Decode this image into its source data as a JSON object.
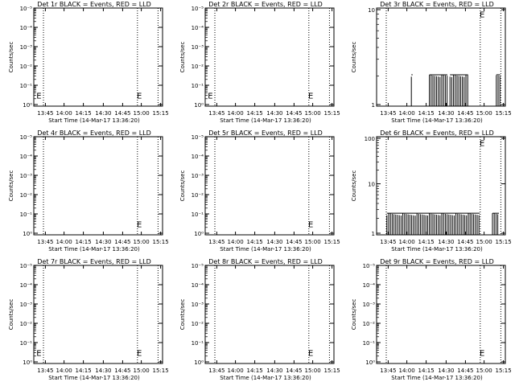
{
  "chart_data": [
    {
      "type": "line",
      "title": "Det 1r BLACK = Events, RED = LLD",
      "xlabel": "Start Time (14-Mar-17 13:36:20)",
      "ylabel": "Counts/sec",
      "xticks": [
        "13:45",
        "14:00",
        "14:15",
        "14:30",
        "14:45",
        "15:00",
        "15:15"
      ],
      "yticks": [
        "10⁰",
        "10⁻¹",
        "10⁻²",
        "10⁻³",
        "10⁻⁴",
        "10⁻⁵"
      ],
      "yscale": "log",
      "series": [],
      "markers": [
        "E",
        "E"
      ]
    },
    {
      "type": "line",
      "title": "Det 2r BLACK = Events, RED = LLD",
      "xlabel": "Start Time (14-Mar-17 13:36:20)",
      "ylabel": "Counts/sec",
      "xticks": [
        "13:45",
        "14:00",
        "14:15",
        "14:30",
        "14:45",
        "15:00",
        "15:15"
      ],
      "yticks": [
        "10⁰",
        "10⁻¹",
        "10⁻²",
        "10⁻³",
        "10⁻⁴",
        "10⁻⁵"
      ],
      "yscale": "log",
      "series": [],
      "markers": [
        "E",
        "E"
      ]
    },
    {
      "type": "line",
      "title": "Det 3r BLACK = Events, RED = LLD",
      "xlabel": "Start Time (14-Mar-17 13:36:20)",
      "ylabel": "Counts/sec",
      "xticks": [
        "13:45",
        "14:00",
        "14:15",
        "14:30",
        "14:45",
        "15:00",
        "15:15"
      ],
      "yticks": [
        "1",
        "10"
      ],
      "yscale": "log",
      "series": [],
      "markers": [
        "E"
      ]
    },
    {
      "type": "line",
      "title": "Det 4r BLACK = Events, RED = LLD",
      "xlabel": "Start Time (14-Mar-17 13:36:20)",
      "ylabel": "Counts/sec",
      "xticks": [
        "13:45",
        "14:00",
        "14:15",
        "14:30",
        "14:45",
        "15:00",
        "15:15"
      ],
      "yticks": [
        "10⁰",
        "10⁻¹",
        "10⁻²",
        "10⁻³",
        "10⁻⁴",
        "10⁻⁵"
      ],
      "yscale": "log",
      "series": [],
      "markers": [
        "E"
      ]
    },
    {
      "type": "line",
      "title": "Det 5r BLACK = Events, RED = LLD",
      "xlabel": "Start Time (14-Mar-17 13:36:20)",
      "ylabel": "Counts/sec",
      "xticks": [
        "13:45",
        "14:00",
        "14:15",
        "14:30",
        "14:45",
        "15:00",
        "15:15"
      ],
      "yticks": [
        "10⁰",
        "10⁻¹",
        "10⁻²",
        "10⁻³",
        "10⁻⁴",
        "10⁻⁵"
      ],
      "yscale": "log",
      "series": [],
      "markers": [
        "E"
      ]
    },
    {
      "type": "line",
      "title": "Det 6r BLACK = Events, RED = LLD",
      "xlabel": "Start Time (14-Mar-17 13:36:20)",
      "ylabel": "Counts/sec",
      "xticks": [
        "13:45",
        "14:00",
        "14:15",
        "14:30",
        "14:45",
        "15:00",
        "15:15"
      ],
      "yticks": [
        "1",
        "10",
        "100"
      ],
      "yscale": "log",
      "series": [],
      "markers": [
        "E"
      ]
    },
    {
      "type": "line",
      "title": "Det 7r BLACK = Events, RED = LLD",
      "xlabel": "Start Time (14-Mar-17 13:36:20)",
      "ylabel": "Counts/sec",
      "xticks": [
        "13:45",
        "14:00",
        "14:15",
        "14:30",
        "14:45",
        "15:00",
        "15:15"
      ],
      "yticks": [
        "10⁰",
        "10⁻¹",
        "10⁻²",
        "10⁻³",
        "10⁻⁴",
        "10⁻⁵"
      ],
      "yscale": "log",
      "series": [],
      "markers": [
        "E",
        "E"
      ]
    },
    {
      "type": "line",
      "title": "Det 8r BLACK = Events, RED = LLD",
      "xlabel": "Start Time (14-Mar-17 13:36:20)",
      "ylabel": "Counts/sec",
      "xticks": [
        "13:45",
        "14:00",
        "14:15",
        "14:30",
        "14:45",
        "15:00",
        "15:15"
      ],
      "yticks": [
        "10⁰",
        "10⁻¹",
        "10⁻²",
        "10⁻³",
        "10⁻⁴",
        "10⁻⁵"
      ],
      "yscale": "log",
      "series": [],
      "markers": [
        "E"
      ]
    },
    {
      "type": "line",
      "title": "Det 9r BLACK = Events, RED = LLD",
      "xlabel": "Start Time (14-Mar-17 13:36:20)",
      "ylabel": "Counts/sec",
      "xticks": [
        "13:45",
        "14:00",
        "14:15",
        "14:30",
        "14:45",
        "15:00",
        "15:15"
      ],
      "yticks": [
        "10⁰",
        "10⁻¹",
        "10⁻²",
        "10⁻³",
        "10⁻⁴",
        "10⁻⁵"
      ],
      "yscale": "log",
      "series": [],
      "markers": [
        "E"
      ]
    }
  ]
}
